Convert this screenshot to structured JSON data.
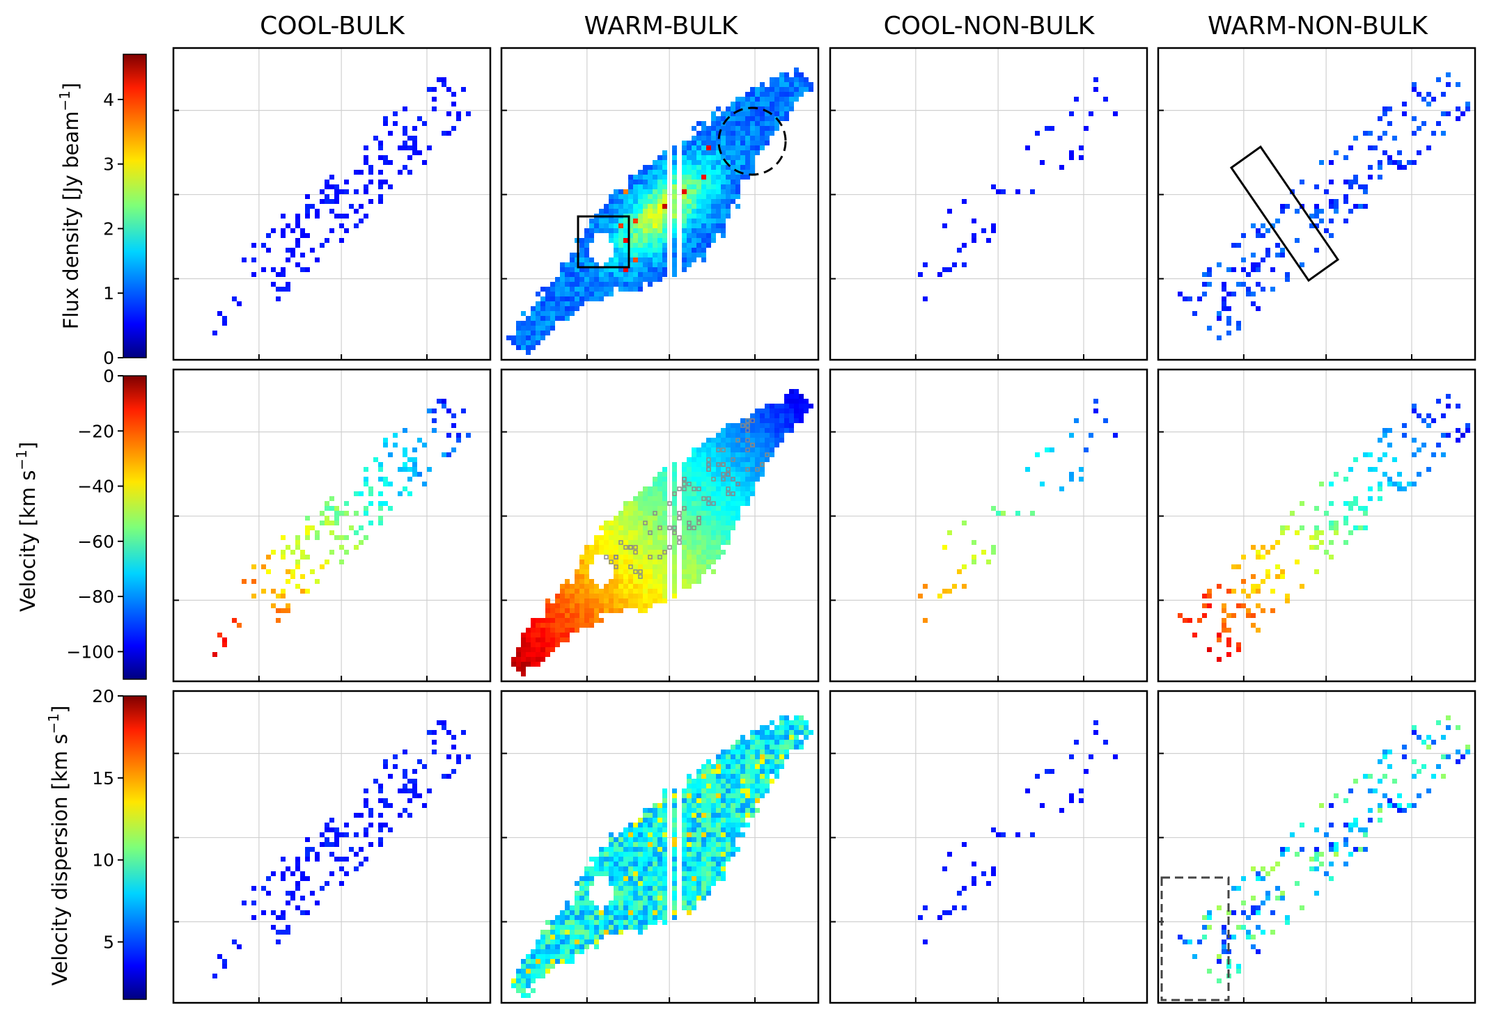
{
  "chart_data": {
    "type": "heatmap",
    "layout": "3x4 grid of map panels",
    "columns": [
      "COOL-BULK",
      "WARM-BULK",
      "COOL-NON-BULK",
      "WARM-NON-BULK"
    ],
    "rows": [
      {
        "quantity": "Flux density",
        "colorbar_label": "Flux density [Jy beam",
        "colorbar_unit_sup": "−1",
        "colorbar_label_end": "]",
        "colormap": "jet",
        "range": [
          0,
          4.7
        ],
        "ticks": [
          "0",
          "1",
          "2",
          "3",
          "4"
        ],
        "tick_values": [
          0,
          1,
          2,
          3,
          4
        ]
      },
      {
        "quantity": "Velocity",
        "colorbar_label": "Velocity [km s",
        "colorbar_unit_sup": "−1",
        "colorbar_label_end": "]",
        "colormap": "jet",
        "range": [
          -110,
          0
        ],
        "ticks": [
          "0",
          "−20",
          "−40",
          "−60",
          "−80",
          "−100"
        ],
        "tick_values": [
          0,
          -20,
          -40,
          -60,
          -80,
          -100
        ]
      },
      {
        "quantity": "Velocity dispersion",
        "colorbar_label": "Velocity dispersion [km s",
        "colorbar_unit_sup": "−1",
        "colorbar_label_end": "]",
        "colormap": "jet",
        "range": [
          1.5,
          20
        ],
        "ticks": [
          "5",
          "10",
          "15",
          "20"
        ],
        "tick_values": [
          5,
          10,
          15,
          20
        ]
      }
    ],
    "grid": "on",
    "axis_tick_labels": "none",
    "annotations": [
      {
        "row": 0,
        "col": 1,
        "shape": "rectangle",
        "style": "solid"
      },
      {
        "row": 0,
        "col": 1,
        "shape": "circle",
        "style": "dashed"
      },
      {
        "row": 0,
        "col": 3,
        "shape": "rotated-rectangle",
        "style": "solid"
      },
      {
        "row": 2,
        "col": 3,
        "shape": "rectangle",
        "style": "dashed",
        "color": "#444444"
      },
      {
        "row": 1,
        "col": 1,
        "shape": "small grey square markers",
        "color": "#888888"
      }
    ],
    "colors": {
      "frame": "#000000",
      "grid": "#d0d0d0",
      "marker": "#888888"
    }
  }
}
